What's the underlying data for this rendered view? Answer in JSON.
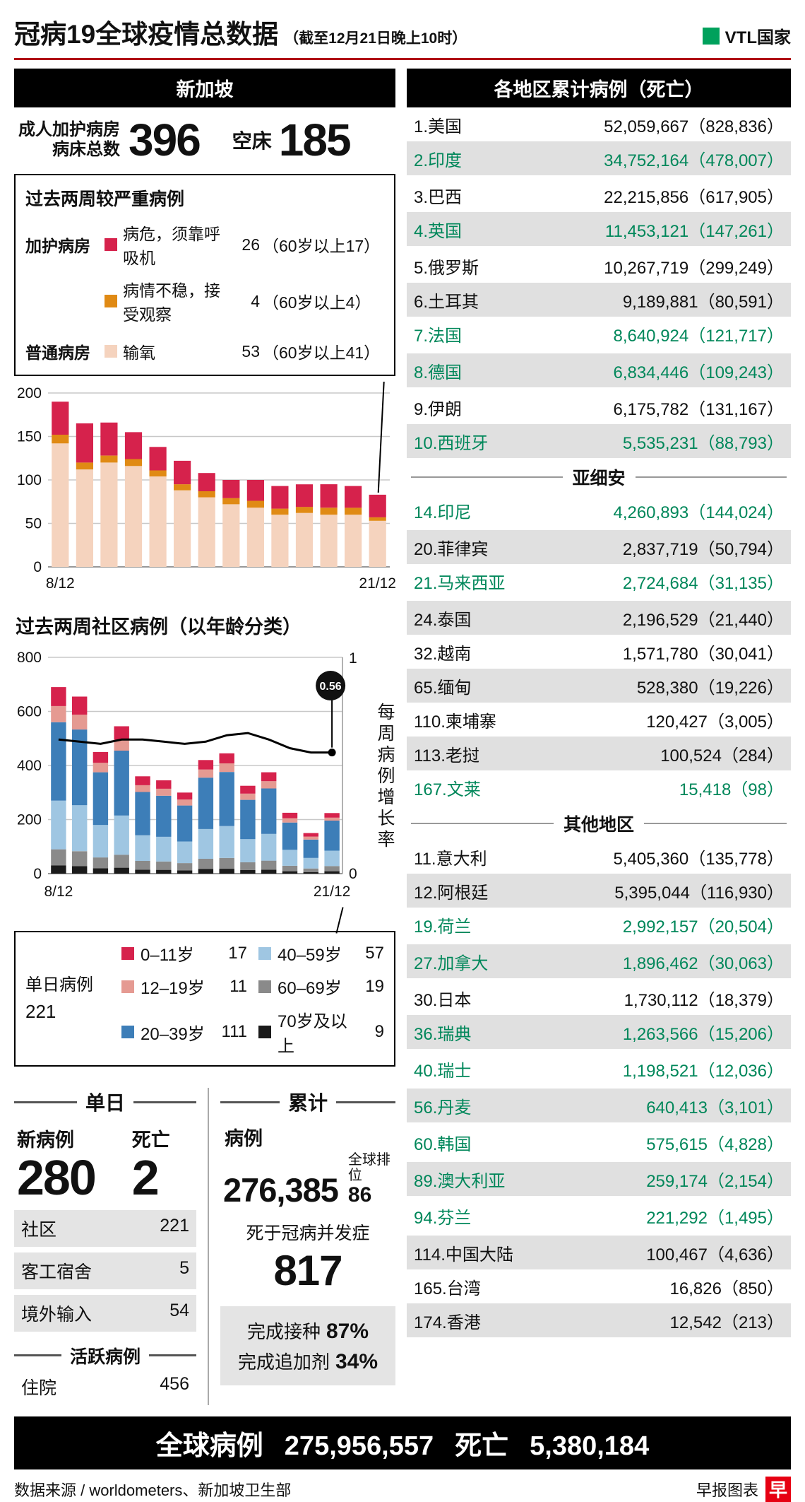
{
  "header": {
    "title": "冠病19全球疫情总数据",
    "subtitle": "（截至12月21日晚上10时）",
    "vtl_label": "VTL国家",
    "vtl_color": "#00A15C"
  },
  "singapore": {
    "section_title": "新加坡",
    "icu": {
      "label_line1": "成人加护病房",
      "label_line2": "病床总数",
      "total": "396",
      "empty_label": "空床",
      "empty": "185"
    },
    "severe_box": {
      "title": "过去两周较严重病例",
      "rows": [
        {
          "group": "加护病房",
          "swatch": "#D6224C",
          "label": "病危，须靠呼吸机",
          "value": "26",
          "note": "（60岁以上17）"
        },
        {
          "group": "",
          "swatch": "#E08A14",
          "label": "病情不稳，接受观察",
          "value": "4",
          "note": "（60岁以上4）"
        },
        {
          "group": "普通病房",
          "swatch": "#F5D3BE",
          "label": "输氧",
          "value": "53",
          "note": "（60岁以上41）"
        }
      ]
    },
    "chart2_title": "过去两周社区病例（以年龄分类）",
    "age_legend": {
      "daily_label": "单日病例",
      "daily_value": "221",
      "items": [
        {
          "swatch": "#D6224C",
          "label": "0–11岁",
          "value": "17"
        },
        {
          "swatch": "#E59A92",
          "label": "12–19岁",
          "value": "11"
        },
        {
          "swatch": "#3D7EB8",
          "label": "20–39岁",
          "value": "111"
        },
        {
          "swatch": "#9FC6E2",
          "label": "40–59岁",
          "value": "57"
        },
        {
          "swatch": "#8A8A8A",
          "label": "60–69岁",
          "value": "19"
        },
        {
          "swatch": "#1A1A1A",
          "label": "70岁及以上",
          "value": "9"
        }
      ]
    },
    "daily": {
      "header": "单日",
      "new_label": "新病例",
      "new_value": "280",
      "death_label": "死亡",
      "death_value": "2",
      "rows": [
        {
          "label": "社区",
          "value": "221"
        },
        {
          "label": "客工宿舍",
          "value": "5"
        },
        {
          "label": "境外输入",
          "value": "54"
        }
      ],
      "active_header": "活跃病例",
      "active_rows": [
        {
          "label": "住院",
          "value": "456"
        }
      ]
    },
    "cumulative": {
      "header": "累计",
      "cases_label": "病例",
      "cases_value": "276,385",
      "rank_label": "全球排位",
      "rank_value": "86",
      "deaths_label": "死于冠病并发症",
      "deaths_value": "817",
      "vax_lines": [
        {
          "label": "完成接种",
          "value": "87%"
        },
        {
          "label": "完成追加剂",
          "value": "34%"
        }
      ]
    }
  },
  "right": {
    "title": "各地区累计病例（死亡）",
    "vtl_text_color": "#00875A",
    "groups": [
      {
        "subheader": null,
        "rows": [
          {
            "name": "1.美国",
            "value": "52,059,667（828,836）",
            "vtl": false
          },
          {
            "name": "2.印度",
            "value": "34,752,164（478,007）",
            "vtl": true
          },
          {
            "name": "3.巴西",
            "value": "22,215,856（617,905）",
            "vtl": false
          },
          {
            "name": "4.英国",
            "value": "11,453,121（147,261）",
            "vtl": true
          },
          {
            "name": "5.俄罗斯",
            "value": "10,267,719（299,249）",
            "vtl": false
          },
          {
            "name": "6.土耳其",
            "value": "9,189,881（80,591）",
            "vtl": false
          },
          {
            "name": "7.法国",
            "value": "8,640,924（121,717）",
            "vtl": true
          },
          {
            "name": "8.德国",
            "value": "6,834,446（109,243）",
            "vtl": true
          },
          {
            "name": "9.伊朗",
            "value": "6,175,782（131,167）",
            "vtl": false
          },
          {
            "name": "10.西班牙",
            "value": "5,535,231（88,793）",
            "vtl": true
          }
        ]
      },
      {
        "subheader": "亚细安",
        "rows": [
          {
            "name": "14.印尼",
            "value": "4,260,893（144,024）",
            "vtl": true
          },
          {
            "name": "20.菲律宾",
            "value": "2,837,719（50,794）",
            "vtl": false
          },
          {
            "name": "21.马来西亚",
            "value": "2,724,684（31,135）",
            "vtl": true
          },
          {
            "name": "24.泰国",
            "value": "2,196,529（21,440）",
            "vtl": false
          },
          {
            "name": "32.越南",
            "value": "1,571,780（30,041）",
            "vtl": false
          },
          {
            "name": "65.缅甸",
            "value": "528,380（19,226）",
            "vtl": false
          },
          {
            "name": "110.柬埔寨",
            "value": "120,427（3,005）",
            "vtl": false
          },
          {
            "name": "113.老挝",
            "value": "100,524（284）",
            "vtl": false
          },
          {
            "name": "167.文莱",
            "value": "15,418（98）",
            "vtl": true
          }
        ]
      },
      {
        "subheader": "其他地区",
        "rows": [
          {
            "name": "11.意大利",
            "value": "5,405,360（135,778）",
            "vtl": false
          },
          {
            "name": "12.阿根廷",
            "value": "5,395,044（116,930）",
            "vtl": false
          },
          {
            "name": "19.荷兰",
            "value": "2,992,157（20,504）",
            "vtl": true
          },
          {
            "name": "27.加拿大",
            "value": "1,896,462（30,063）",
            "vtl": true
          },
          {
            "name": "30.日本",
            "value": "1,730,112（18,379）",
            "vtl": false
          },
          {
            "name": "36.瑞典",
            "value": "1,263,566（15,206）",
            "vtl": true
          },
          {
            "name": "40.瑞士",
            "value": "1,198,521（12,036）",
            "vtl": true
          },
          {
            "name": "56.丹麦",
            "value": "640,413（3,101）",
            "vtl": true
          },
          {
            "name": "60.韩国",
            "value": "575,615（4,828）",
            "vtl": true
          },
          {
            "name": "89.澳大利亚",
            "value": "259,174（2,154）",
            "vtl": true
          },
          {
            "name": "94.芬兰",
            "value": "221,292（1,495）",
            "vtl": true
          },
          {
            "name": "114.中国大陆",
            "value": "100,467（4,636）",
            "vtl": false
          },
          {
            "name": "165.台湾",
            "value": "16,826（850）",
            "vtl": false
          },
          {
            "name": "174.香港",
            "value": "12,542（213）",
            "vtl": false
          }
        ]
      }
    ]
  },
  "global_bar": {
    "cases_label": "全球病例",
    "cases_value": "275,956,557",
    "deaths_label": "死亡",
    "deaths_value": "5,380,184"
  },
  "footer": {
    "source": "数据来源 / worldometers、新加坡卫生部",
    "credit": "早报图表",
    "logo_char": "早",
    "logo_color": "#E60012"
  },
  "chart_data": [
    {
      "type": "bar",
      "title": "过去两周较严重病例",
      "x_first": "8/12",
      "x_last": "21/12",
      "ylim": [
        0,
        200
      ],
      "yticks": [
        0,
        50,
        100,
        150,
        200
      ],
      "grid": true,
      "series": [
        {
          "name": "输氧",
          "color": "#F5D3BE",
          "values": [
            142,
            112,
            120,
            116,
            104,
            88,
            80,
            72,
            68,
            60,
            62,
            60,
            60,
            53
          ]
        },
        {
          "name": "病情不稳，接受观察",
          "color": "#E08A14",
          "values": [
            10,
            8,
            8,
            8,
            7,
            7,
            7,
            7,
            8,
            7,
            7,
            8,
            8,
            4
          ]
        },
        {
          "name": "病危，须靠呼吸机",
          "color": "#D6224C",
          "values": [
            38,
            45,
            38,
            31,
            27,
            27,
            21,
            21,
            24,
            26,
            26,
            27,
            25,
            26
          ]
        }
      ]
    },
    {
      "type": "bar+line",
      "title": "过去两周社区病例（以年龄分类）",
      "x_first": "8/12",
      "x_last": "21/12",
      "ylim": [
        0,
        800
      ],
      "yticks": [
        0,
        200,
        400,
        600,
        800
      ],
      "y2lim": [
        0,
        1
      ],
      "y2ticks": [
        0,
        1
      ],
      "y2label": "每周病例增长率",
      "grid": true,
      "series": [
        {
          "name": "70岁及以上",
          "color": "#1A1A1A",
          "values": [
            30,
            28,
            20,
            22,
            15,
            14,
            12,
            17,
            18,
            13,
            15,
            9,
            6,
            9
          ]
        },
        {
          "name": "60–69岁",
          "color": "#8A8A8A",
          "values": [
            60,
            55,
            40,
            48,
            32,
            31,
            27,
            38,
            40,
            29,
            33,
            20,
            13,
            19
          ]
        },
        {
          "name": "40–59岁",
          "color": "#9FC6E2",
          "values": [
            180,
            170,
            120,
            145,
            95,
            91,
            80,
            110,
            118,
            86,
            99,
            59,
            39,
            57
          ]
        },
        {
          "name": "20–39岁",
          "color": "#3D7EB8",
          "values": [
            290,
            280,
            195,
            240,
            160,
            152,
            133,
            190,
            200,
            145,
            168,
            101,
            68,
            111
          ]
        },
        {
          "name": "12–19岁",
          "color": "#E59A92",
          "values": [
            60,
            55,
            35,
            40,
            25,
            26,
            22,
            30,
            32,
            23,
            27,
            16,
            11,
            11
          ]
        },
        {
          "name": "0–11岁",
          "color": "#D6224C",
          "values": [
            70,
            67,
            40,
            50,
            33,
            31,
            26,
            35,
            37,
            29,
            33,
            20,
            13,
            17
          ]
        }
      ],
      "line": {
        "name": "每周病例增长率",
        "color": "#000000",
        "values": [
          0.62,
          0.61,
          0.6,
          0.62,
          0.62,
          0.61,
          0.6,
          0.61,
          0.64,
          0.65,
          0.62,
          0.58,
          0.56,
          0.56
        ],
        "last_label": "0.56"
      }
    }
  ]
}
